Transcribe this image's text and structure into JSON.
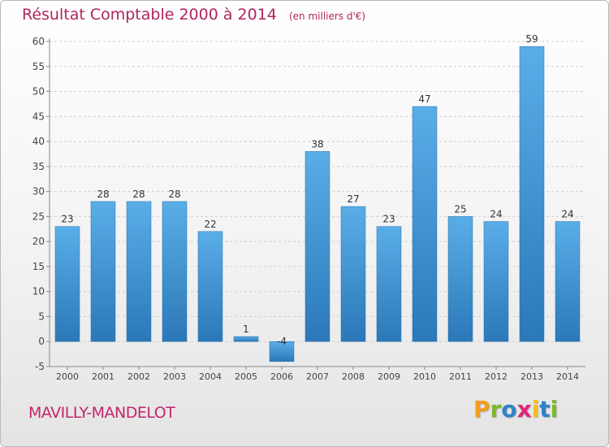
{
  "chart_data": {
    "type": "bar",
    "title": "Résultat Comptable 2000 à 2014",
    "subtitle": "(en milliers d'€)",
    "categories": [
      "2000",
      "2001",
      "2002",
      "2003",
      "2004",
      "2005",
      "2006",
      "2007",
      "2008",
      "2009",
      "2010",
      "2011",
      "2012",
      "2013",
      "2014"
    ],
    "values": [
      23,
      28,
      28,
      28,
      22,
      1,
      -4,
      38,
      27,
      23,
      47,
      25,
      24,
      59,
      24
    ],
    "data_labels": [
      "23",
      "28",
      "28",
      "28",
      "22",
      "1",
      "-4",
      "38",
      "27",
      "23",
      "47",
      "25",
      "24",
      "59",
      "24"
    ],
    "ylim": [
      -5,
      60
    ],
    "yticks": [
      -5,
      0,
      5,
      10,
      15,
      20,
      25,
      30,
      35,
      40,
      45,
      50,
      55,
      60
    ],
    "grid": "horizontal dashed",
    "bar_color": "#3c8fd0"
  },
  "footer": {
    "commune": "MAVILLY-MANDELOT",
    "brand_letters": [
      "P",
      "r",
      "o",
      "x",
      "i",
      "t",
      "i"
    ],
    "brand_colors": [
      "#f39c1e",
      "#7cb82f",
      "#2f82c8",
      "#e0267a",
      "#f5c21a",
      "#2f82c8",
      "#7cb82f"
    ]
  }
}
